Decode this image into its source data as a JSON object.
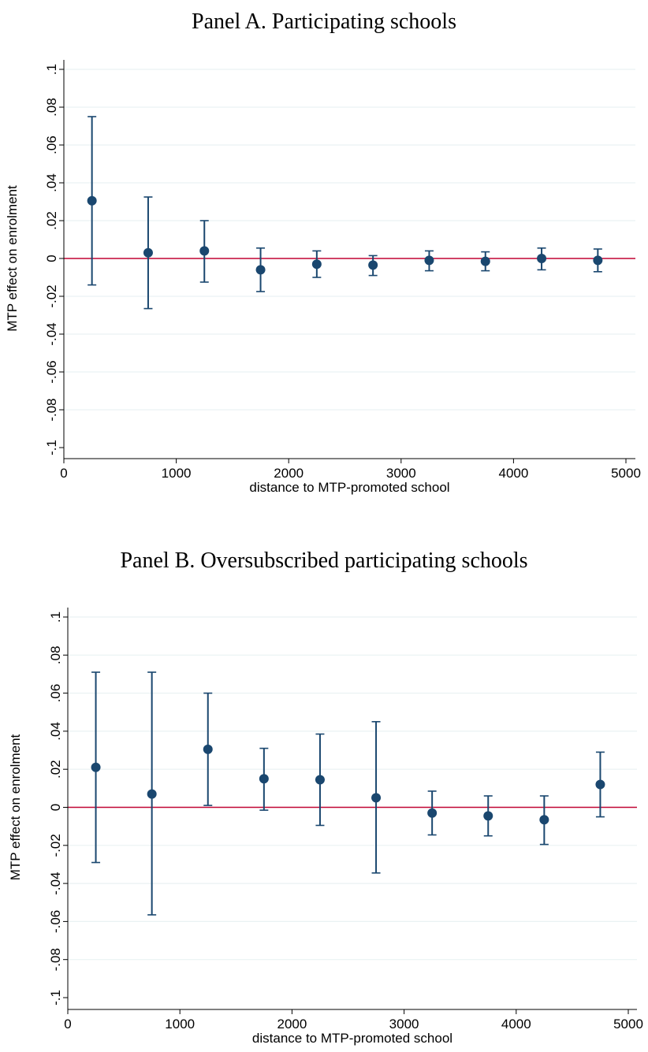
{
  "colors": {
    "marker": "#1a476f",
    "reference_line": "#c10534",
    "grid": "#eaf2f3",
    "axis": "#000000"
  },
  "chart_data": [
    {
      "type": "scatter",
      "title": "Panel A. Participating schools",
      "xlabel": "distance to MTP-promoted school",
      "ylabel": "MTP effect on enrolment",
      "xlim": [
        0,
        5000
      ],
      "ylim": [
        -0.1,
        0.1
      ],
      "xticks": [
        0,
        1000,
        2000,
        3000,
        4000,
        5000
      ],
      "xtick_labels": [
        "0",
        "1000",
        "2000",
        "3000",
        "4000",
        "5000"
      ],
      "yticks": [
        -0.1,
        -0.08,
        -0.06,
        -0.04,
        -0.02,
        0,
        0.02,
        0.04,
        0.06,
        0.08,
        0.1
      ],
      "ytick_labels": [
        "-.1",
        "-.08",
        "-.06",
        "-.04",
        "-.02",
        "0",
        ".02",
        ".04",
        ".06",
        ".08",
        ".1"
      ],
      "grid": true,
      "reference_line_y": 0,
      "points": [
        {
          "x": 250,
          "y": 0.0305,
          "lo": -0.014,
          "hi": 0.075
        },
        {
          "x": 750,
          "y": 0.003,
          "lo": -0.0265,
          "hi": 0.0325
        },
        {
          "x": 1250,
          "y": 0.004,
          "lo": -0.0125,
          "hi": 0.02
        },
        {
          "x": 1750,
          "y": -0.006,
          "lo": -0.0175,
          "hi": 0.0055
        },
        {
          "x": 2250,
          "y": -0.003,
          "lo": -0.01,
          "hi": 0.004
        },
        {
          "x": 2750,
          "y": -0.0035,
          "lo": -0.009,
          "hi": 0.0015
        },
        {
          "x": 3250,
          "y": -0.001,
          "lo": -0.0065,
          "hi": 0.004
        },
        {
          "x": 3750,
          "y": -0.0015,
          "lo": -0.0065,
          "hi": 0.0035
        },
        {
          "x": 4250,
          "y": 0.0,
          "lo": -0.006,
          "hi": 0.0055
        },
        {
          "x": 4750,
          "y": -0.001,
          "lo": -0.007,
          "hi": 0.005
        }
      ]
    },
    {
      "type": "scatter",
      "title": "Panel B. Oversubscribed participating schools",
      "xlabel": "distance to MTP-promoted school",
      "ylabel": "MTP effect on enrolment",
      "xlim": [
        0,
        5000
      ],
      "ylim": [
        -0.1,
        0.1
      ],
      "xticks": [
        0,
        1000,
        2000,
        3000,
        4000,
        5000
      ],
      "xtick_labels": [
        "0",
        "1000",
        "2000",
        "3000",
        "4000",
        "5000"
      ],
      "yticks": [
        -0.1,
        -0.08,
        -0.06,
        -0.04,
        -0.02,
        0,
        0.02,
        0.04,
        0.06,
        0.08,
        0.1
      ],
      "ytick_labels": [
        "-.1",
        "-.08",
        "-.06",
        "-.04",
        "-.02",
        "0",
        ".02",
        ".04",
        ".06",
        ".08",
        ".1"
      ],
      "grid": true,
      "reference_line_y": 0,
      "points": [
        {
          "x": 250,
          "y": 0.021,
          "lo": -0.029,
          "hi": 0.071
        },
        {
          "x": 750,
          "y": 0.007,
          "lo": -0.0565,
          "hi": 0.071
        },
        {
          "x": 1250,
          "y": 0.0305,
          "lo": 0.001,
          "hi": 0.06
        },
        {
          "x": 1750,
          "y": 0.015,
          "lo": -0.0015,
          "hi": 0.031
        },
        {
          "x": 2250,
          "y": 0.0145,
          "lo": -0.0095,
          "hi": 0.0385
        },
        {
          "x": 2750,
          "y": 0.005,
          "lo": -0.0345,
          "hi": 0.045
        },
        {
          "x": 3250,
          "y": -0.003,
          "lo": -0.0145,
          "hi": 0.0085
        },
        {
          "x": 3750,
          "y": -0.0045,
          "lo": -0.015,
          "hi": 0.006
        },
        {
          "x": 4250,
          "y": -0.0065,
          "lo": -0.0195,
          "hi": 0.006
        },
        {
          "x": 4750,
          "y": 0.012,
          "lo": -0.005,
          "hi": 0.029
        }
      ]
    }
  ]
}
